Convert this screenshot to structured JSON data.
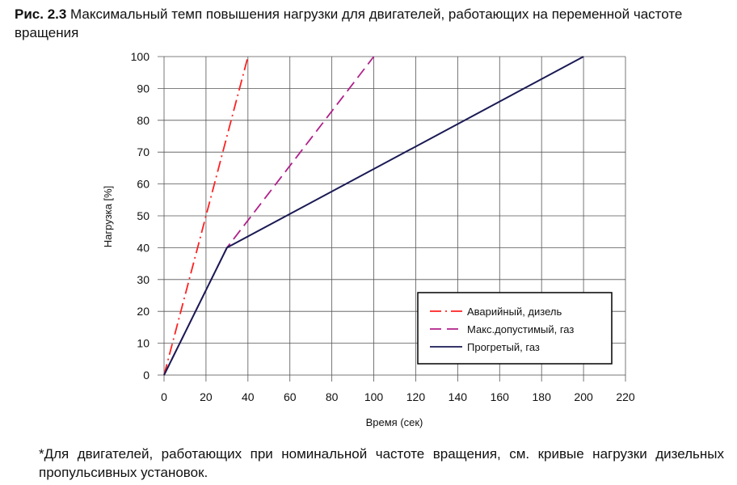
{
  "caption": {
    "prefix": "Рис. 2.3",
    "text": " Максимальный темп повышения нагрузки для двигателей, работающих на переменной частоте вращения"
  },
  "footnote": "*Для двигателей, работающих при номинальной частоте вращения, см. кривые нагрузки дизельных пропульсивных установок.",
  "chart_data": {
    "type": "line",
    "title": "Максимальный темп повышения нагрузки для двигателей, работающих на переменной частоте вращения",
    "xlabel": "Время (сек)",
    "ylabel": "Нагрузка [%]",
    "xlim": [
      0,
      220
    ],
    "ylim": [
      0,
      100
    ],
    "xticks": [
      0,
      20,
      40,
      60,
      80,
      100,
      120,
      140,
      160,
      180,
      200,
      220
    ],
    "yticks": [
      0,
      10,
      20,
      30,
      40,
      50,
      60,
      70,
      80,
      90,
      100
    ],
    "grid": true,
    "legend_position": "lower right",
    "series": [
      {
        "name": "Аварийный, дизель",
        "style": "dash-dot",
        "color": "#ff2020",
        "x": [
          0,
          40
        ],
        "y": [
          0,
          100
        ]
      },
      {
        "name": "Макс.допустимый, газ",
        "style": "dashed",
        "color": "#b0208a",
        "x": [
          0,
          30,
          100
        ],
        "y": [
          0,
          40,
          100
        ]
      },
      {
        "name": "Прогретый, газ",
        "style": "solid",
        "color": "#1a1a55",
        "x": [
          0,
          30,
          200
        ],
        "y": [
          0,
          40,
          100
        ]
      }
    ]
  }
}
